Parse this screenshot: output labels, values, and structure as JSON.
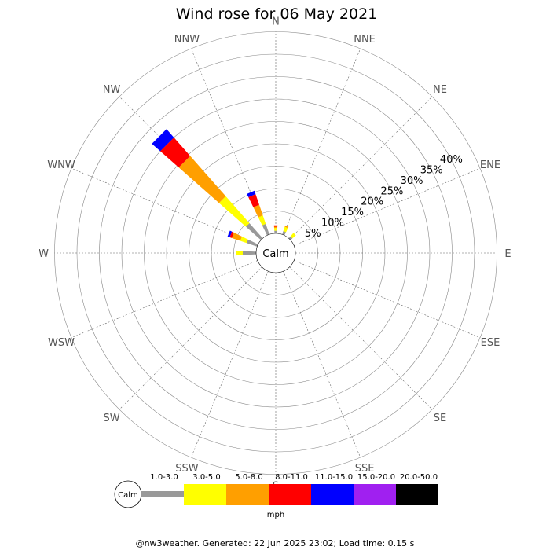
{
  "chart_data": {
    "type": "windrose",
    "title": "Wind rose for 06 May 2021",
    "directions": [
      "N",
      "NNE",
      "NE",
      "ENE",
      "E",
      "ESE",
      "SE",
      "SSE",
      "S",
      "SSW",
      "SW",
      "WSW",
      "W",
      "WNW",
      "NW",
      "NNW"
    ],
    "ring_labels": [
      "5%",
      "10%",
      "15%",
      "20%",
      "25%",
      "30%",
      "35%",
      "40%"
    ],
    "calm_label": "Calm",
    "unit": "mph",
    "bins": [
      "1.0-3.0",
      "3.0-5.0",
      "5.0-8.0",
      "8.0-11.0",
      "11.0-15.0",
      "15.0-20.0",
      "20.0-50.0"
    ],
    "colors": [
      "#999999",
      "#ffff00",
      "#ff9f00",
      "#ff0000",
      "#0000ff",
      "#a020f0",
      "#000000"
    ],
    "series": [
      {
        "direction": "N",
        "values": [
          0.6,
          0.6,
          0.3,
          0.3,
          0,
          0,
          0
        ]
      },
      {
        "direction": "NNE",
        "values": [
          0.8,
          1.0,
          0.3,
          0,
          0,
          0,
          0
        ]
      },
      {
        "direction": "NE",
        "values": [
          0.6,
          1.0,
          0,
          0,
          0,
          0,
          0
        ]
      },
      {
        "direction": "NNW",
        "values": [
          2.5,
          2.0,
          2.5,
          2.5,
          0.8,
          0,
          0
        ]
      },
      {
        "direction": "NW",
        "values": [
          4.5,
          8.0,
          12.0,
          5.5,
          2.5,
          0,
          0
        ]
      },
      {
        "direction": "WNW",
        "values": [
          2.5,
          1.5,
          2.0,
          0.5,
          0.5,
          0,
          0
        ]
      },
      {
        "direction": "W",
        "values": [
          3.0,
          1.5,
          0,
          0,
          0,
          0,
          0
        ]
      }
    ]
  },
  "footer": "@nw3weather. Generated: 22 Jun 2025 23:02; Load time: 0.15 s"
}
